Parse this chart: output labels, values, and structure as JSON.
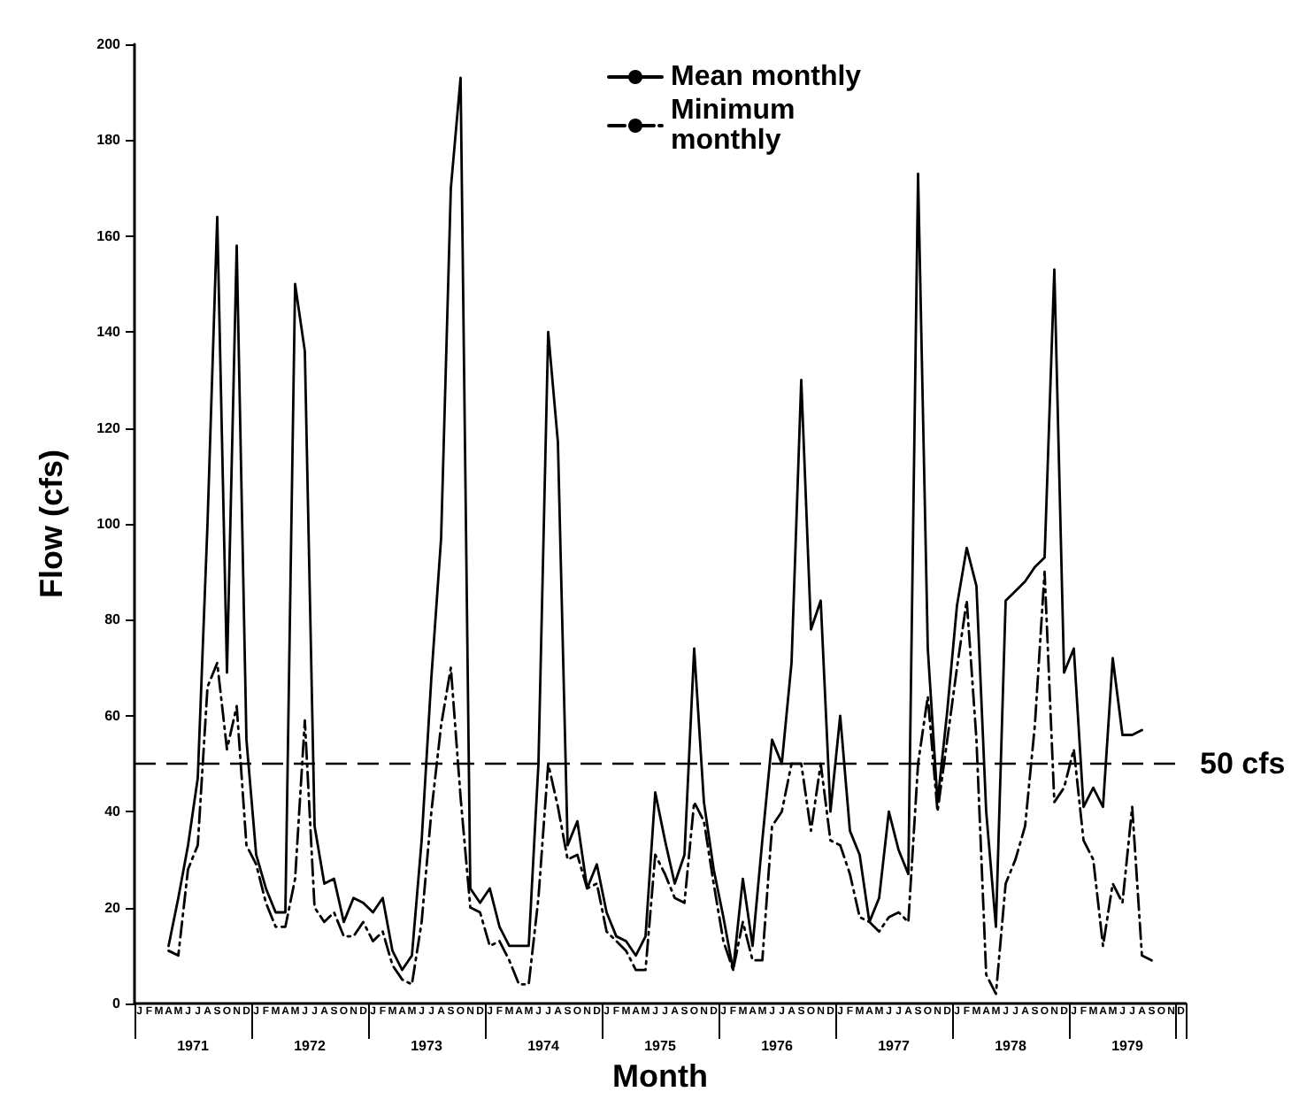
{
  "chart_data": {
    "type": "line",
    "xlabel": "Month",
    "ylabel": "Flow (cfs)",
    "categories": [
      "J",
      "F",
      "M",
      "A",
      "M",
      "J",
      "J",
      "A",
      "S",
      "O",
      "N",
      "D",
      "J",
      "F",
      "M",
      "A",
      "M",
      "J",
      "J",
      "A",
      "S",
      "O",
      "N",
      "D",
      "J",
      "F",
      "M",
      "A",
      "M",
      "J",
      "J",
      "A",
      "S",
      "O",
      "N",
      "D",
      "J",
      "F",
      "M",
      "A",
      "M",
      "J",
      "J",
      "A",
      "S",
      "O",
      "N",
      "D",
      "J",
      "F",
      "M",
      "A",
      "M",
      "J",
      "J",
      "A",
      "S",
      "O",
      "N",
      "D",
      "J",
      "F",
      "M",
      "A",
      "M",
      "J",
      "J",
      "A",
      "S",
      "O",
      "N",
      "D",
      "J",
      "F",
      "M",
      "A",
      "M",
      "J",
      "J",
      "A",
      "S",
      "O",
      "N",
      "D",
      "J",
      "F",
      "M",
      "A",
      "M",
      "J",
      "J",
      "A",
      "S",
      "O",
      "N",
      "D",
      "J",
      "F",
      "M",
      "A",
      "M",
      "J",
      "J",
      "A",
      "S",
      "O",
      "N",
      "D"
    ],
    "series": [
      {
        "name": "Mean monthly",
        "color": "#000000",
        "line_style": "solid",
        "values": [
          null,
          null,
          null,
          12,
          22,
          33,
          47,
          100,
          164,
          69,
          158,
          55,
          31,
          24,
          19,
          19,
          150,
          136,
          37,
          25,
          26,
          17,
          22,
          21,
          19,
          22,
          11,
          7,
          10,
          34,
          68,
          97,
          170,
          193,
          24,
          21,
          24,
          16,
          12,
          12,
          12,
          50,
          140,
          117,
          33,
          38,
          24,
          29,
          19,
          14,
          13,
          10,
          14,
          44,
          34,
          25,
          31,
          74,
          42,
          28,
          18,
          7,
          26,
          12,
          34,
          55,
          50,
          71,
          130,
          78,
          84,
          40,
          60,
          36,
          31,
          17,
          22,
          40,
          32,
          27,
          173,
          74,
          42,
          61,
          83,
          95,
          87,
          40,
          16,
          84,
          86,
          88,
          91,
          93,
          153,
          69,
          74,
          41,
          45,
          41,
          72,
          56,
          56,
          57,
          null,
          null,
          null,
          null
        ]
      },
      {
        "name": "Minimum monthly",
        "color": "#000000",
        "line_style": "dashed",
        "values": [
          null,
          null,
          null,
          11,
          10,
          28,
          33,
          66,
          71,
          53,
          62,
          33,
          29,
          21,
          16,
          16,
          26,
          59,
          20,
          17,
          19,
          14,
          14,
          17,
          13,
          15,
          8,
          5,
          4,
          17,
          40,
          58,
          70,
          43,
          20,
          19,
          12,
          13,
          9,
          4,
          4,
          22,
          50,
          41,
          30,
          31,
          24,
          25,
          15,
          13,
          11,
          7,
          7,
          31,
          27,
          22,
          21,
          42,
          38,
          25,
          13,
          7,
          17,
          9,
          9,
          37,
          40,
          50,
          50,
          36,
          50,
          34,
          33,
          27,
          18,
          17,
          15,
          18,
          19,
          17,
          50,
          64,
          40,
          55,
          70,
          84,
          55,
          6,
          2,
          25,
          30,
          37,
          58,
          90,
          42,
          45,
          53,
          34,
          30,
          12,
          25,
          21,
          41,
          10,
          9,
          null,
          null,
          null
        ]
      }
    ],
    "ylim": [
      0,
      200
    ],
    "yticks": [
      0,
      20,
      40,
      60,
      80,
      100,
      120,
      140,
      160,
      180,
      200
    ],
    "ref_lines": [
      {
        "axis": "y",
        "value": 50,
        "label": "50 cfs",
        "line_style": "dashed",
        "color": "#000000"
      }
    ],
    "annotations": [
      "1971",
      "1972",
      "1973",
      "1974",
      "1975",
      "1976",
      "1977",
      "1978",
      "1979"
    ],
    "legend": "top",
    "grid": false,
    "marker": "none"
  }
}
